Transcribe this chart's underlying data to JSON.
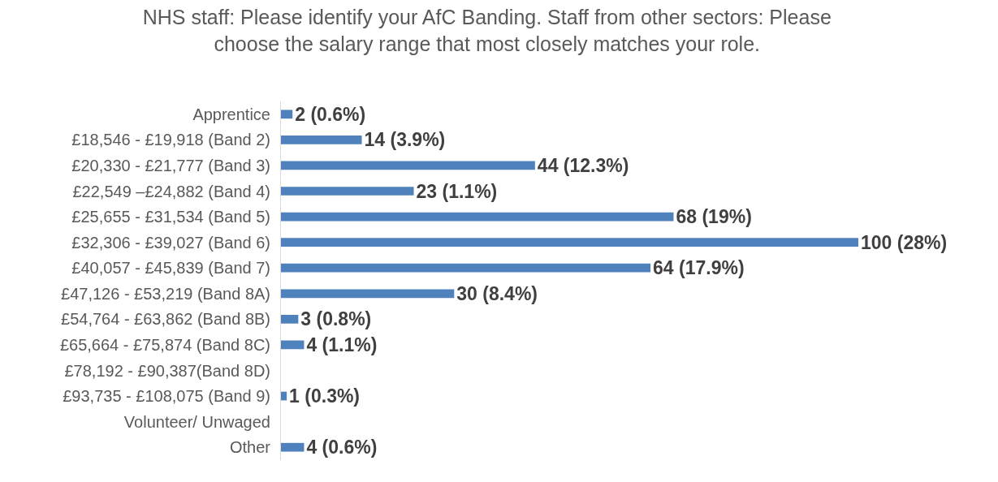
{
  "chart_data": {
    "type": "bar",
    "orientation": "horizontal",
    "title": "NHS staff: Please identify your AfC Banding. Staff from other sectors: Please\nchoose the salary range that most closely matches your role.",
    "categories": [
      "Apprentice",
      "£18,546 - £19,918 (Band 2)",
      "£20,330 - £21,777 (Band 3)",
      "£22,549 –£24,882 (Band 4)",
      "£25,655 - £31,534 (Band 5)",
      "£32,306 - £39,027 (Band 6)",
      "£40,057 - £45,839 (Band 7)",
      "£47,126 - £53,219 (Band 8A)",
      "£54,764 - £63,862 (Band 8B)",
      "£65,664 - £75,874 (Band 8C)",
      "£78,192 - £90,387(Band 8D)",
      "£93,735 - £108,075 (Band 9)",
      "Volunteer/ Unwaged",
      "Other"
    ],
    "values": [
      2,
      14,
      44,
      23,
      68,
      100,
      64,
      30,
      3,
      4,
      null,
      1,
      null,
      4
    ],
    "value_labels": [
      "2 (0.6%)",
      "14 (3.9%)",
      "44 (12.3%)",
      "23 (1.1%)",
      "68 (19%)",
      "100 (28%)",
      "64 (17.9%)",
      "30 (8.4%)",
      "3 (0.8%)",
      "4 (1.1%)",
      null,
      "1 (0.3%)",
      null,
      "4 (0.6%)"
    ],
    "color": "#4f81bd",
    "tick_labels": "y"
  }
}
